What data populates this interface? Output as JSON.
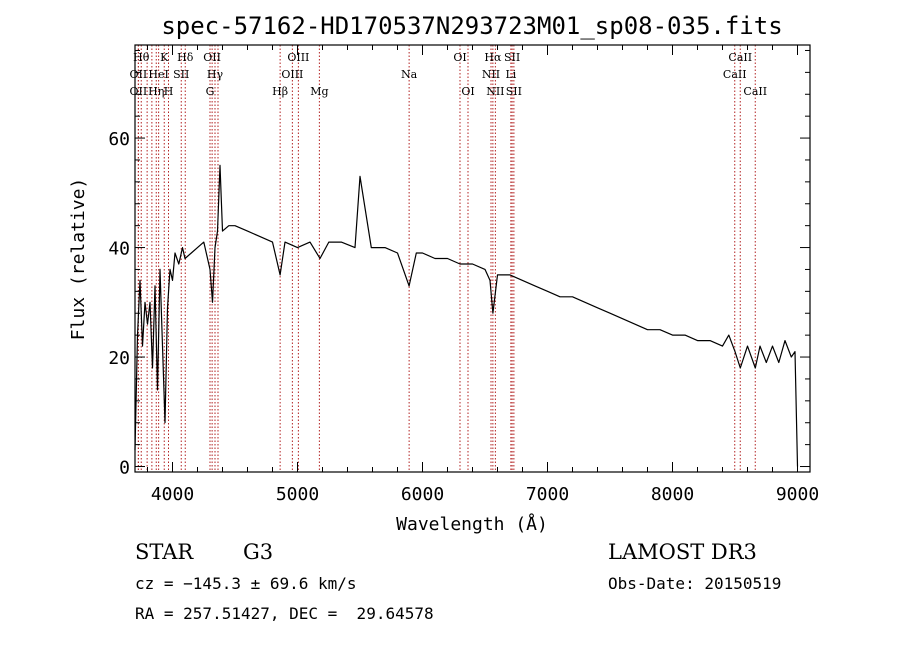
{
  "chart_data": {
    "type": "line",
    "title": "spec-57162-HD170537N293723M01_sp08-035.fits",
    "xlabel": "Wavelength (Å)",
    "ylabel": "Flux (relative)",
    "xlim": [
      3700,
      9100
    ],
    "ylim": [
      -1,
      77
    ],
    "x_ticks": [
      4000,
      5000,
      6000,
      7000,
      8000,
      9000
    ],
    "y_ticks": [
      0,
      20,
      40,
      60
    ],
    "series": [
      {
        "name": "spectrum",
        "x": [
          3700,
          3720,
          3740,
          3760,
          3780,
          3800,
          3820,
          3840,
          3860,
          3880,
          3900,
          3920,
          3940,
          3960,
          3980,
          4000,
          4020,
          4050,
          4080,
          4100,
          4150,
          4200,
          4250,
          4300,
          4320,
          4340,
          4360,
          4380,
          4400,
          4450,
          4500,
          4600,
          4700,
          4800,
          4861,
          4900,
          5000,
          5100,
          5180,
          5250,
          5350,
          5460,
          5500,
          5590,
          5700,
          5800,
          5893,
          5950,
          6000,
          6100,
          6200,
          6300,
          6400,
          6500,
          6540,
          6563,
          6600,
          6700,
          6800,
          6900,
          7000,
          7100,
          7200,
          7300,
          7400,
          7500,
          7600,
          7700,
          7800,
          7900,
          8000,
          8100,
          8200,
          8300,
          8400,
          8450,
          8500,
          8542,
          8600,
          8662,
          8700,
          8750,
          8800,
          8850,
          8900,
          8950,
          8980,
          9000
        ],
        "values": [
          3,
          24,
          34,
          22,
          30,
          26,
          30,
          18,
          33,
          14,
          36,
          22,
          8,
          29,
          36,
          34,
          39,
          37,
          40,
          38,
          39,
          40,
          41,
          36,
          30,
          40,
          43,
          55,
          43,
          44,
          44,
          43,
          42,
          41,
          35,
          41,
          40,
          41,
          38,
          41,
          41,
          40,
          53,
          40,
          40,
          39,
          33,
          39,
          39,
          38,
          38,
          37,
          37,
          36,
          34,
          28,
          35,
          35,
          34,
          33,
          32,
          31,
          31,
          30,
          29,
          28,
          27,
          26,
          25,
          25,
          24,
          24,
          23,
          23,
          22,
          24,
          21,
          18,
          22,
          18,
          22,
          19,
          22,
          19,
          23,
          20,
          21,
          0
        ]
      }
    ],
    "lines": [
      {
        "w": 3750,
        "label": "Hθ",
        "row": 0
      },
      {
        "w": 3727,
        "label": "OII",
        "row": 1
      },
      {
        "w": 3727,
        "label": "OII",
        "row": 2
      },
      {
        "w": 3797,
        "label": "",
        "row": -1
      },
      {
        "w": 3835,
        "label": "",
        "row": -1
      },
      {
        "w": 3889,
        "label": "HeI",
        "row": 1
      },
      {
        "w": 3870,
        "label": "Hη",
        "row": 2
      },
      {
        "w": 3934,
        "label": "K",
        "row": 0
      },
      {
        "w": 3968,
        "label": "H",
        "row": 2
      },
      {
        "w": 4070,
        "label": "SII",
        "row": 1
      },
      {
        "w": 4102,
        "label": "Hδ",
        "row": 0
      },
      {
        "w": 4300,
        "label": "G",
        "row": 2
      },
      {
        "w": 4317,
        "label": "OII",
        "row": 0
      },
      {
        "w": 4340,
        "label": "Hγ",
        "row": 1
      },
      {
        "w": 4364,
        "label": "",
        "row": -1
      },
      {
        "w": 4861,
        "label": "Hβ",
        "row": 2
      },
      {
        "w": 4959,
        "label": "OIII",
        "row": 1
      },
      {
        "w": 5007,
        "label": "OIII",
        "row": 0
      },
      {
        "w": 5175,
        "label": "Mg",
        "row": 2
      },
      {
        "w": 5893,
        "label": "Na",
        "row": 1
      },
      {
        "w": 6300,
        "label": "OI",
        "row": 0
      },
      {
        "w": 6364,
        "label": "OI",
        "row": 2
      },
      {
        "w": 6548,
        "label": "NII",
        "row": 1
      },
      {
        "w": 6563,
        "label": "Hα",
        "row": 0
      },
      {
        "w": 6583,
        "label": "NII",
        "row": 2
      },
      {
        "w": 6707,
        "label": "Li",
        "row": 1
      },
      {
        "w": 6717,
        "label": "SII",
        "row": 0
      },
      {
        "w": 6731,
        "label": "SII",
        "row": 2
      },
      {
        "w": 8498,
        "label": "CaII",
        "row": 1
      },
      {
        "w": 8542,
        "label": "CaII",
        "row": 0
      },
      {
        "w": 8662,
        "label": "CaII",
        "row": 2
      }
    ],
    "grid": false,
    "legend": "none"
  },
  "info": {
    "object_class": "STAR",
    "subclass": "G3",
    "survey": "LAMOST DR3",
    "cz": "cz = −145.3 ± 69.6 km/s",
    "obs_date": "Obs-Date: 20150519",
    "coords": "RA = 257.51427, DEC =  29.64578"
  },
  "colors": {
    "spectrum": "#000000",
    "line_marker": "#b22222"
  }
}
